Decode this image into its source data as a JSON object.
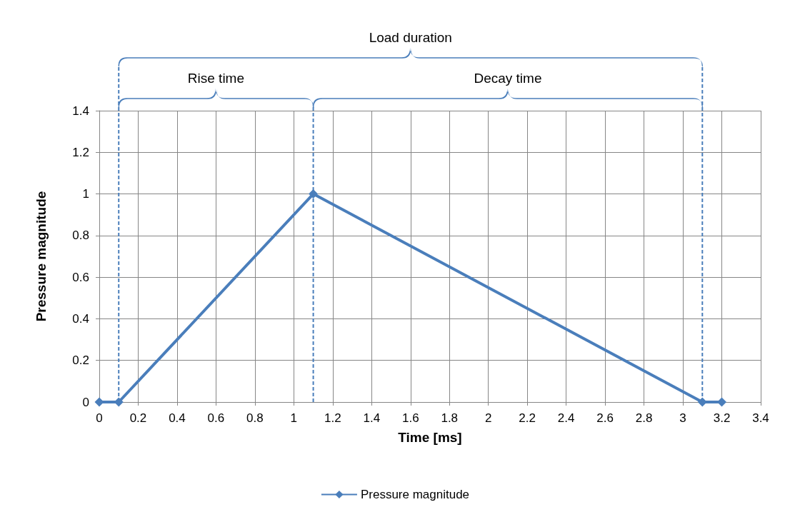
{
  "chart_data": {
    "type": "line",
    "xlabel": "Time [ms]",
    "ylabel": "Pressure magnitude",
    "x": [
      0,
      0.1,
      1.1,
      3.1,
      3.2
    ],
    "series": [
      {
        "name": "Pressure magnitude",
        "color": "#4a7ebb",
        "values": [
          0,
          0,
          1,
          0,
          0
        ]
      }
    ],
    "xlim": [
      0,
      3.4
    ],
    "xticks": [
      0,
      0.2,
      0.4,
      0.6,
      0.8,
      1,
      1.2,
      1.4,
      1.6,
      1.8,
      2,
      2.2,
      2.4,
      2.6,
      2.8,
      3,
      3.2,
      3.4
    ],
    "ylim": [
      0,
      1.4
    ],
    "yticks": [
      0,
      0.2,
      0.4,
      0.6,
      0.8,
      1,
      1.2,
      1.4
    ],
    "ref_lines": [
      {
        "axis": "x",
        "value": 0.1,
        "line_style": "dashed",
        "color": "#4a7ebb"
      },
      {
        "axis": "x",
        "value": 1.1,
        "line_style": "dashed",
        "color": "#4a7ebb"
      },
      {
        "axis": "x",
        "value": 3.1,
        "line_style": "dashed",
        "color": "#4a7ebb"
      }
    ],
    "annotations": [
      "Load duration",
      "Rise time",
      "Decay time"
    ],
    "grid": true,
    "legend": "bottom",
    "marker": "diamond",
    "line_style": "solid"
  }
}
